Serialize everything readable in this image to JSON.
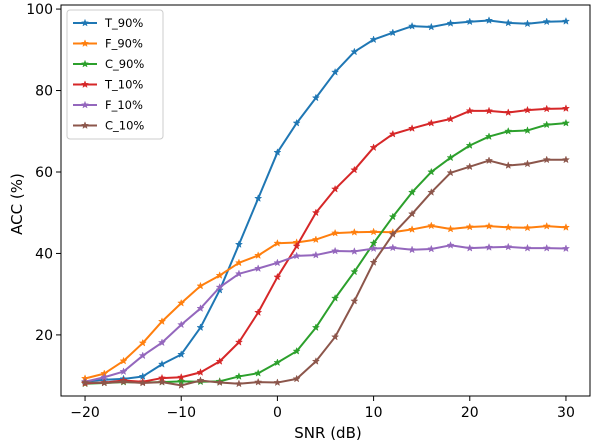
{
  "chart_data": {
    "type": "line",
    "title": "",
    "xlabel": "SNR (dB)",
    "ylabel": "ACC (%)",
    "xlim": [
      -22.5,
      32.5
    ],
    "ylim": [
      5,
      101
    ],
    "xticks": [
      -20,
      -10,
      0,
      10,
      20,
      30
    ],
    "yticks": [
      20,
      40,
      60,
      80,
      100
    ],
    "grid": false,
    "legend_position": "top-left",
    "marker": "star",
    "x": [
      -20,
      -18,
      -16,
      -14,
      -12,
      -10,
      -8,
      -6,
      -4,
      -2,
      0,
      2,
      4,
      6,
      8,
      10,
      12,
      14,
      16,
      18,
      20,
      22,
      24,
      26,
      28,
      30
    ],
    "series": [
      {
        "name": "T_90%",
        "color": "#1f77b4",
        "values": [
          8.5,
          9.0,
          9.2,
          9.8,
          12.8,
          15.2,
          21.8,
          31.0,
          42.2,
          53.5,
          64.8,
          72.0,
          78.2,
          84.5,
          89.5,
          92.5,
          94.2,
          95.8,
          95.6,
          96.5,
          96.9,
          97.2,
          96.6,
          96.4,
          96.9,
          97.0
        ]
      },
      {
        "name": "F_90%",
        "color": "#ff7f0e",
        "values": [
          9.3,
          10.5,
          13.6,
          18.0,
          23.3,
          27.8,
          32.0,
          34.6,
          37.7,
          39.5,
          42.5,
          42.7,
          43.4,
          45.0,
          45.2,
          45.3,
          45.2,
          45.9,
          46.8,
          46.0,
          46.5,
          46.7,
          46.4,
          46.3,
          46.7,
          46.4
        ]
      },
      {
        "name": "C_90%",
        "color": "#2ca02c",
        "values": [
          8.0,
          8.2,
          8.4,
          8.3,
          8.4,
          8.6,
          8.5,
          8.6,
          9.8,
          10.6,
          13.2,
          16.0,
          21.8,
          29.0,
          35.5,
          42.5,
          49.0,
          55.0,
          60.0,
          63.5,
          66.5,
          68.7,
          70.0,
          70.2,
          71.6,
          72.0
        ]
      },
      {
        "name": "T_10%",
        "color": "#d62728",
        "values": [
          8.1,
          8.3,
          8.8,
          8.5,
          9.4,
          9.6,
          10.8,
          13.5,
          18.2,
          25.5,
          34.2,
          41.8,
          50.0,
          55.8,
          60.5,
          66.0,
          69.3,
          70.7,
          72.0,
          73.0,
          75.0,
          75.0,
          74.6,
          75.2,
          75.5,
          75.6
        ]
      },
      {
        "name": "F_10%",
        "color": "#9467bd",
        "values": [
          8.5,
          9.6,
          11.0,
          14.9,
          18.1,
          22.5,
          26.5,
          31.7,
          35.0,
          36.3,
          37.7,
          39.4,
          39.6,
          40.6,
          40.5,
          41.2,
          41.4,
          40.9,
          41.1,
          42.0,
          41.3,
          41.5,
          41.6,
          41.3,
          41.3,
          41.2
        ]
      },
      {
        "name": "C_10%",
        "color": "#8c564b",
        "values": [
          8.3,
          8.2,
          8.5,
          8.2,
          8.4,
          7.6,
          8.8,
          8.3,
          8.0,
          8.4,
          8.3,
          9.2,
          13.5,
          19.5,
          28.3,
          37.8,
          44.7,
          49.7,
          55.0,
          59.8,
          61.3,
          62.8,
          61.6,
          62.0,
          63.0,
          63.0
        ]
      }
    ]
  }
}
